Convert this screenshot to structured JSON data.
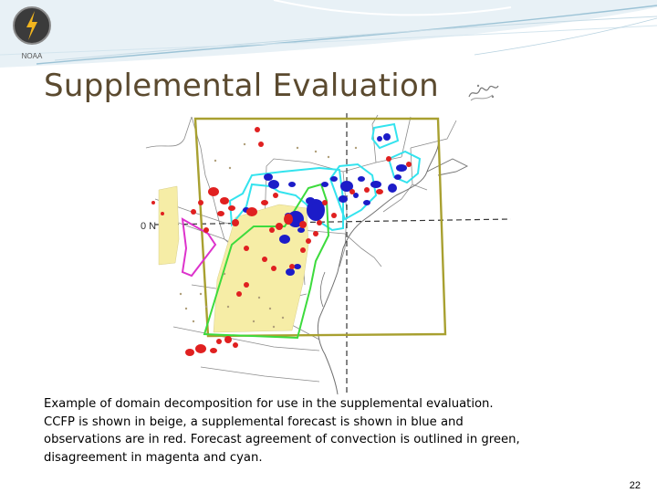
{
  "slide": {
    "title": "Supplemental Evaluation",
    "logo": {
      "text": "NOAA",
      "icon": "lightning-bolt-icon"
    },
    "caption_lines": [
      "Example of domain decomposition for use in the supplemental evaluation.",
      "CCFP is shown in beige, a supplemental forecast is shown in blue and",
      "observations are in red.  Forecast agreement of convection is outlined in green,",
      "disagreement in magenta and cyan."
    ],
    "page_number": "22"
  },
  "map": {
    "latitude_label": "0 N",
    "colors": {
      "ccfp": "#f6eda6",
      "forecast": "#1c1cc8",
      "observation": "#e02020",
      "agreement": "#3ddb3d",
      "disagreement_magenta": "#dd33cc",
      "disagreement_cyan": "#33e3ee",
      "domain_box": "#a8a030"
    }
  }
}
